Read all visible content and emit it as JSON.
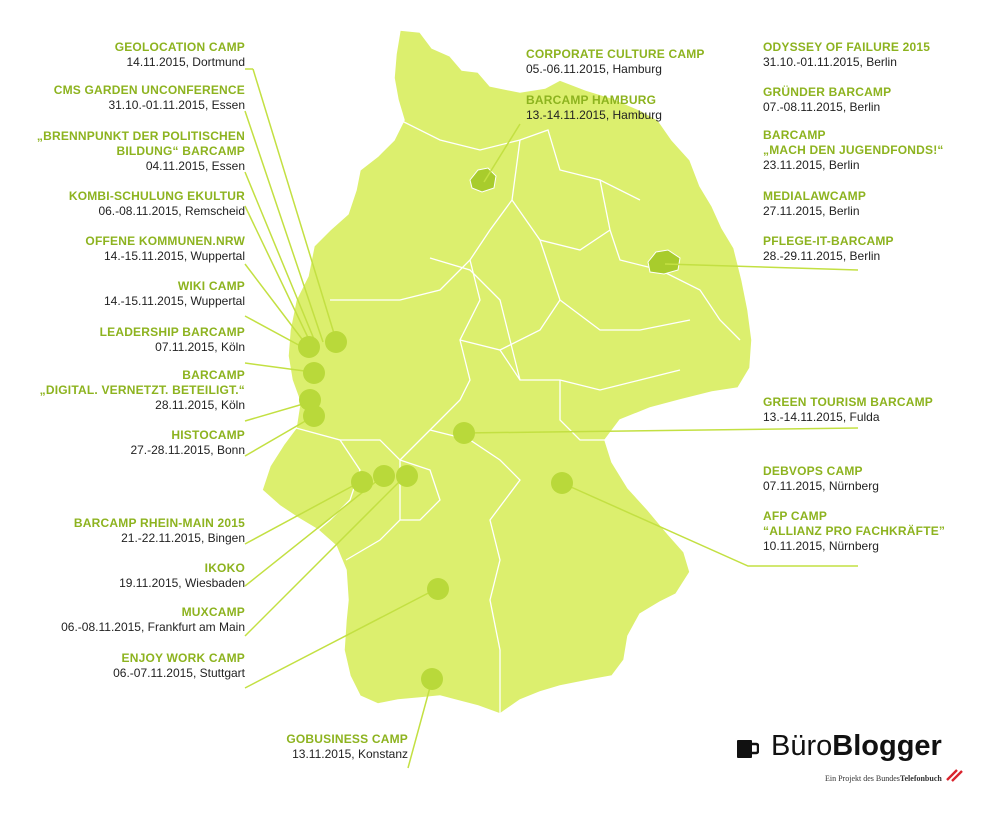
{
  "colors": {
    "land": "#dcef6e",
    "border": "#ffffff",
    "accent": "#a8cc2c",
    "title": "#8db31f",
    "dot": "#b9d93a"
  },
  "events": [
    {
      "id": "geolocation",
      "title": "GEOLOCATION CAMP",
      "date": "14.11.2015, Dortmund"
    },
    {
      "id": "cms",
      "title": "CMS GARDEN UNCONFERENCE",
      "date": "31.10.-01.11.2015, Essen"
    },
    {
      "id": "brennpunkt",
      "title": "„BRENNPUNKT DER POLITISCHEN",
      "title2": "BILDUNG“ BARCAMP",
      "date": "04.11.2015, Essen"
    },
    {
      "id": "kombi",
      "title": "KOMBI-SCHULUNG EKULTUR",
      "date": "06.-08.11.2015, Remscheid"
    },
    {
      "id": "offene",
      "title": "OFFENE KOMMUNEN.NRW",
      "date": "14.-15.11.2015, Wuppertal"
    },
    {
      "id": "wiki",
      "title": "WIKI CAMP",
      "date": "14.-15.11.2015, Wuppertal"
    },
    {
      "id": "leadership",
      "title": "LEADERSHIP BARCAMP",
      "date": "07.11.2015, Köln"
    },
    {
      "id": "digital",
      "title": "BARCAMP",
      "title2": "„DIGITAL. VERNETZT. BETEILIGT.“",
      "date": "28.11.2015, Köln"
    },
    {
      "id": "histo",
      "title": "HISTOCAMP",
      "date": "27.-28.11.2015, Bonn"
    },
    {
      "id": "rheinmain",
      "title": "BARCAMP RHEIN-MAIN 2015",
      "date": "21.-22.11.2015, Bingen"
    },
    {
      "id": "ikoko",
      "title": "IKOKO",
      "date": "19.11.2015, Wiesbaden"
    },
    {
      "id": "mux",
      "title": "MUXCAMP",
      "date": "06.-08.11.2015, Frankfurt am Main"
    },
    {
      "id": "enjoy",
      "title": "ENJOY WORK CAMP",
      "date": "06.-07.11.2015, Stuttgart"
    },
    {
      "id": "gobusiness",
      "title": "GOBUSINESS CAMP",
      "date": "13.11.2015, Konstanz"
    },
    {
      "id": "corporate",
      "title": "CORPORATE CULTURE CAMP",
      "date": "05.-06.11.2015, Hamburg"
    },
    {
      "id": "bchamburg",
      "title": "BARCAMP HAMBURG",
      "date": "13.-14.11.2015, Hamburg"
    },
    {
      "id": "odyssey",
      "title": "ODYSSEY OF FAILURE 2015",
      "date": "31.10.-01.11.2015, Berlin"
    },
    {
      "id": "gruender",
      "title": "GRÜNDER BARCAMP",
      "date": "07.-08.11.2015, Berlin"
    },
    {
      "id": "jugend",
      "title": "BARCAMP",
      "title2": "„MACH DEN JUGENDFONDS!“",
      "date": "23.11.2015, Berlin"
    },
    {
      "id": "medialaw",
      "title": "MEDIALAWCAMP",
      "date": "27.11.2015, Berlin"
    },
    {
      "id": "pflege",
      "title": "PFLEGE-IT-BARCAMP",
      "date": "28.-29.11.2015, Berlin"
    },
    {
      "id": "green",
      "title": "GREEN TOURISM BARCAMP",
      "date": "13.-14.11.2015, Fulda"
    },
    {
      "id": "debvops",
      "title": "DEBVOPS CAMP",
      "date": "07.11.2015, Nürnberg"
    },
    {
      "id": "afp",
      "title": "AFP CAMP",
      "title2": "“ALLIANZ PRO FACHKRÄFTE”",
      "date": "10.11.2015, Nürnberg"
    }
  ],
  "logo": {
    "word1": "Büro",
    "word2": "Blogger",
    "tagline_pre": "Ein Projekt des ",
    "tagline_bundes": "Bundes",
    "tagline_brand": "Telefonbuch"
  }
}
